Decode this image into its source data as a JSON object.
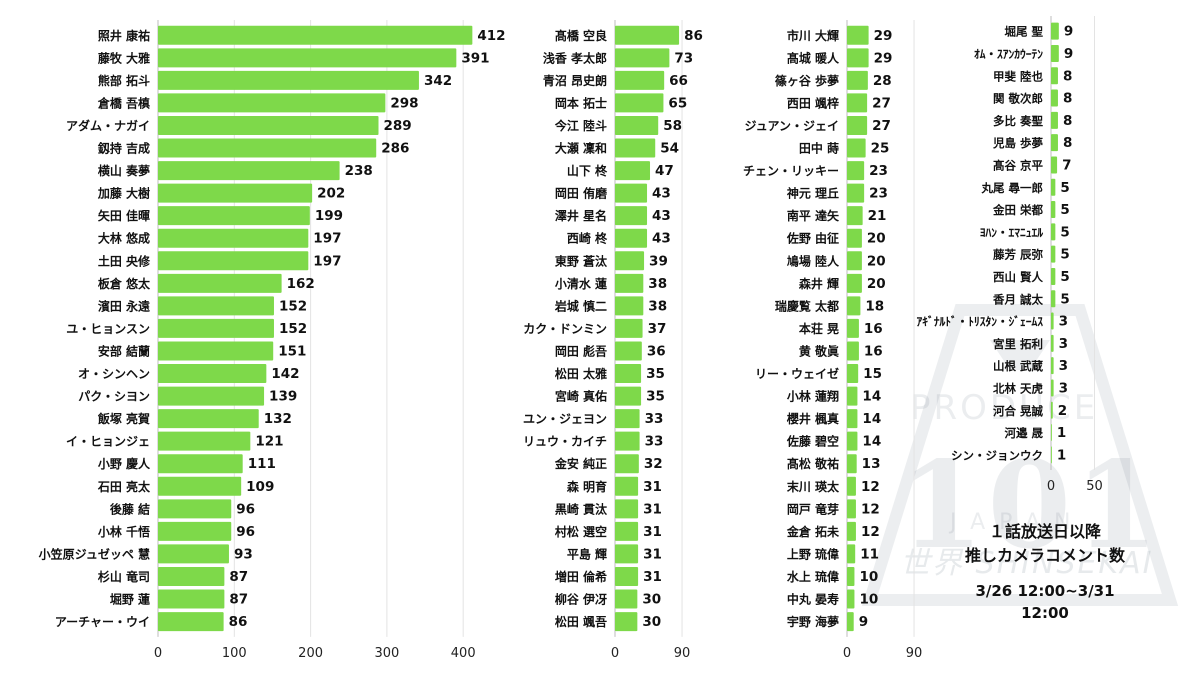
{
  "logo": {
    "brand": "PRODUCE",
    "number": "101",
    "region": "JAPAN",
    "subtitle": "世界 SHINSEKAI"
  },
  "caption": {
    "line1": "１話放送日以降",
    "line2": "推しカメラコメント数",
    "line3": "3/26 12:00~3/31 12:00"
  },
  "chart_data": [
    {
      "type": "bar",
      "orientation": "horizontal",
      "title": "",
      "xlim": [
        0,
        400
      ],
      "xticks": [
        0,
        100,
        200,
        300,
        400
      ],
      "grid": true,
      "color": "#7ED94A",
      "categories": [
        "照井 康祐",
        "藤牧 大雅",
        "熊部 拓斗",
        "倉橋 吾槙",
        "アダム・ナガイ",
        "釼持 吉成",
        "横山 奏夢",
        "加藤 大樹",
        "矢田 佳暉",
        "大林 悠成",
        "土田 央修",
        "板倉 悠太",
        "濱田 永遠",
        "ユ・ヒョンスン",
        "安部 結蘭",
        "オ・シンヘン",
        "パク・シヨン",
        "飯塚 亮賀",
        "イ・ヒョンジェ",
        "小野 慶人",
        "石田 亮太",
        "後藤 結",
        "小林 千悟",
        "小笠原ジュゼッペ 慧",
        "杉山 竜司",
        "堀野 蓮",
        "アーチャー・ウイ"
      ],
      "values": [
        412,
        391,
        342,
        298,
        289,
        286,
        238,
        202,
        199,
        197,
        197,
        162,
        152,
        152,
        151,
        142,
        139,
        132,
        121,
        111,
        109,
        96,
        96,
        93,
        87,
        87,
        86
      ]
    },
    {
      "type": "bar",
      "orientation": "horizontal",
      "title": "",
      "xlim": [
        0,
        90
      ],
      "xticks": [
        0,
        90
      ],
      "grid": true,
      "color": "#7ED94A",
      "categories": [
        "髙橋 空良",
        "浅香 孝太郎",
        "青沼 昂史朗",
        "岡本 拓士",
        "今江 陸斗",
        "大瀬 凜和",
        "山下 柊",
        "岡田 侑磨",
        "澤井 星名",
        "西崎 柊",
        "東野 蒼汰",
        "小清水 蓮",
        "岩城 慎二",
        "カク・ドンミン",
        "岡田 彪吾",
        "松田 太雅",
        "宮崎 真佑",
        "ユン・ジェヨン",
        "リュウ・カイチ",
        "金安 純正",
        "森 明育",
        "黒崎 貫汰",
        "村松 選空",
        "平島 輝",
        "増田 倫希",
        "柳谷 伊冴",
        "松田 颯吾"
      ],
      "values": [
        86,
        73,
        66,
        65,
        58,
        54,
        47,
        43,
        43,
        43,
        39,
        38,
        38,
        37,
        36,
        35,
        35,
        33,
        33,
        32,
        31,
        31,
        31,
        31,
        31,
        30,
        30
      ]
    },
    {
      "type": "bar",
      "orientation": "horizontal",
      "title": "",
      "xlim": [
        0,
        90
      ],
      "xticks": [
        0,
        90
      ],
      "grid": true,
      "color": "#7ED94A",
      "categories": [
        "市川 大輝",
        "髙城 暖人",
        "篠ヶ谷 歩夢",
        "西田 颯梓",
        "ジュアン・ジェイ",
        "田中 蒔",
        "チェン・リッキー",
        "神元 理丘",
        "南平 達矢",
        "佐野 由征",
        "鳩場 陸人",
        "森井 輝",
        "瑞慶覧 太都",
        "本荘 晃",
        "黄 敬眞",
        "リー・ウェイゼ",
        "小林 蓮翔",
        "櫻井 楓真",
        "佐藤 碧空",
        "髙松 敬祐",
        "末川 瑛太",
        "岡戸 竜芽",
        "金倉 拓未",
        "上野 琉偉",
        "水上 琉偉",
        "中丸 晏寿",
        "宇野 海夢"
      ],
      "values": [
        29,
        29,
        28,
        27,
        27,
        25,
        23,
        23,
        21,
        20,
        20,
        20,
        18,
        16,
        16,
        15,
        14,
        14,
        14,
        13,
        12,
        12,
        12,
        11,
        10,
        10,
        9
      ]
    },
    {
      "type": "bar",
      "orientation": "horizontal",
      "title": "",
      "xlim": [
        0,
        50
      ],
      "xticks": [
        0,
        50
      ],
      "grid": true,
      "color": "#7ED94A",
      "categories": [
        "堀尾 聖",
        "ｵﾑ・ｽｱﾝｶｳｰﾃﾝ",
        "甲斐 陸也",
        "関 敬次郎",
        "多比 奏聖",
        "児島 歩夢",
        "髙谷 京平",
        "丸尾 尋一郎",
        "金田 栄都",
        "ﾖﾊﾝ・ｴﾏﾆｭｴﾙ",
        "藤芳 辰弥",
        "西山 賢人",
        "香月 誠太",
        "ｱｷﾞﾅﾙﾄﾞ・ﾄﾘｽﾀﾝ・ｼﾞｪｰﾑｽ",
        "宮里 拓利",
        "山根 武蔵",
        "北林 天虎",
        "河合 晃誠",
        "河邉 晟",
        "シン・ジョンウク"
      ],
      "values": [
        9,
        9,
        8,
        8,
        8,
        8,
        7,
        5,
        5,
        5,
        5,
        5,
        5,
        3,
        3,
        3,
        3,
        2,
        1,
        1
      ]
    }
  ]
}
